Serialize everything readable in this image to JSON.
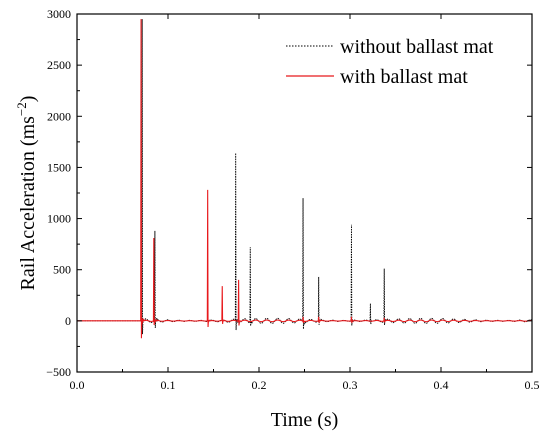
{
  "chart_data": {
    "type": "line",
    "xlabel": "Time (s)",
    "ylabel_main": "Rail Acceleration (ms",
    "ylabel_sup": "−2",
    "ylabel_close": ")",
    "xlim": [
      0.0,
      0.5
    ],
    "ylim": [
      -500,
      3000
    ],
    "x_ticks": [
      0.0,
      0.1,
      0.2,
      0.3,
      0.4,
      0.5
    ],
    "x_tick_labels": [
      "0.0",
      "0.1",
      "0.2",
      "0.3",
      "0.4",
      "0.5"
    ],
    "y_ticks": [
      -500,
      0,
      500,
      1000,
      1500,
      2000,
      2500,
      3000
    ],
    "y_tick_labels": [
      "−500",
      "0",
      "500",
      "1000",
      "1500",
      "2000",
      "2500",
      "3000"
    ],
    "grid": false,
    "legend_position": "top-right",
    "series": [
      {
        "name": "without ballast mat",
        "color": "#000000",
        "dashed": true,
        "baseline_noise": 25,
        "spikes": [
          {
            "t": 0.0715,
            "peak": 2950,
            "trough": -130,
            "ringing": 40
          },
          {
            "t": 0.0855,
            "peak": 880,
            "trough": -70,
            "ringing": 60
          },
          {
            "t": 0.1745,
            "peak": 1640,
            "trough": -90,
            "ringing": 55
          },
          {
            "t": 0.1905,
            "peak": 720,
            "trough": -50,
            "ringing": 45
          },
          {
            "t": 0.2485,
            "peak": 1200,
            "trough": -80,
            "ringing": 45
          },
          {
            "t": 0.2655,
            "peak": 430,
            "trough": -40,
            "ringing": 35
          },
          {
            "t": 0.3015,
            "peak": 940,
            "trough": -45,
            "ringing": 35
          },
          {
            "t": 0.3225,
            "peak": 170,
            "trough": -30,
            "ringing": 25
          },
          {
            "t": 0.3375,
            "peak": 510,
            "trough": -40,
            "ringing": 30
          }
        ]
      },
      {
        "name": "with ballast mat",
        "color": "#e8191c",
        "dashed": false,
        "baseline_noise": 8,
        "spikes": [
          {
            "t": 0.0705,
            "peak": 2950,
            "trough": -170,
            "ringing": 60
          },
          {
            "t": 0.0845,
            "peak": 810,
            "trough": -40,
            "ringing": 30
          },
          {
            "t": 0.1435,
            "peak": 1280,
            "trough": -60,
            "ringing": 25
          },
          {
            "t": 0.1595,
            "peak": 340,
            "trough": -30,
            "ringing": 15
          },
          {
            "t": 0.1775,
            "peak": 400,
            "trough": -45,
            "ringing": 20
          },
          {
            "t": 0.2485,
            "peak": 40,
            "trough": -20,
            "ringing": 10
          },
          {
            "t": 0.2655,
            "peak": 40,
            "trough": -20,
            "ringing": 10
          },
          {
            "t": 0.3015,
            "peak": 40,
            "trough": -20,
            "ringing": 10
          },
          {
            "t": 0.3375,
            "peak": 30,
            "trough": -15,
            "ringing": 8
          }
        ]
      }
    ]
  }
}
